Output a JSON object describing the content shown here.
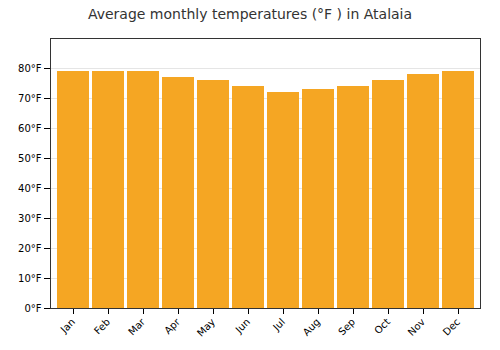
{
  "chart_data": {
    "type": "bar",
    "title": "Average monthly temperatures (°F ) in Atalaia",
    "categories": [
      "Jan",
      "Feb",
      "Mar",
      "Apr",
      "May",
      "Jun",
      "Jul",
      "Aug",
      "Sep",
      "Oct",
      "Nov",
      "Dec"
    ],
    "values": [
      79,
      79,
      79,
      77,
      76,
      74,
      72,
      73,
      74,
      76,
      78,
      79
    ],
    "color": "#F5A623",
    "ylim": [
      0,
      90
    ],
    "yticks": [
      {
        "value": 0,
        "label": "0°F"
      },
      {
        "value": 10,
        "label": "10°F"
      },
      {
        "value": 20,
        "label": "20°F"
      },
      {
        "value": 30,
        "label": "30°F"
      },
      {
        "value": 40,
        "label": "40°F"
      },
      {
        "value": 50,
        "label": "50°F"
      },
      {
        "value": 60,
        "label": "60°F"
      },
      {
        "value": 70,
        "label": "70°F"
      },
      {
        "value": 80,
        "label": "80°F"
      }
    ],
    "grid": true
  }
}
